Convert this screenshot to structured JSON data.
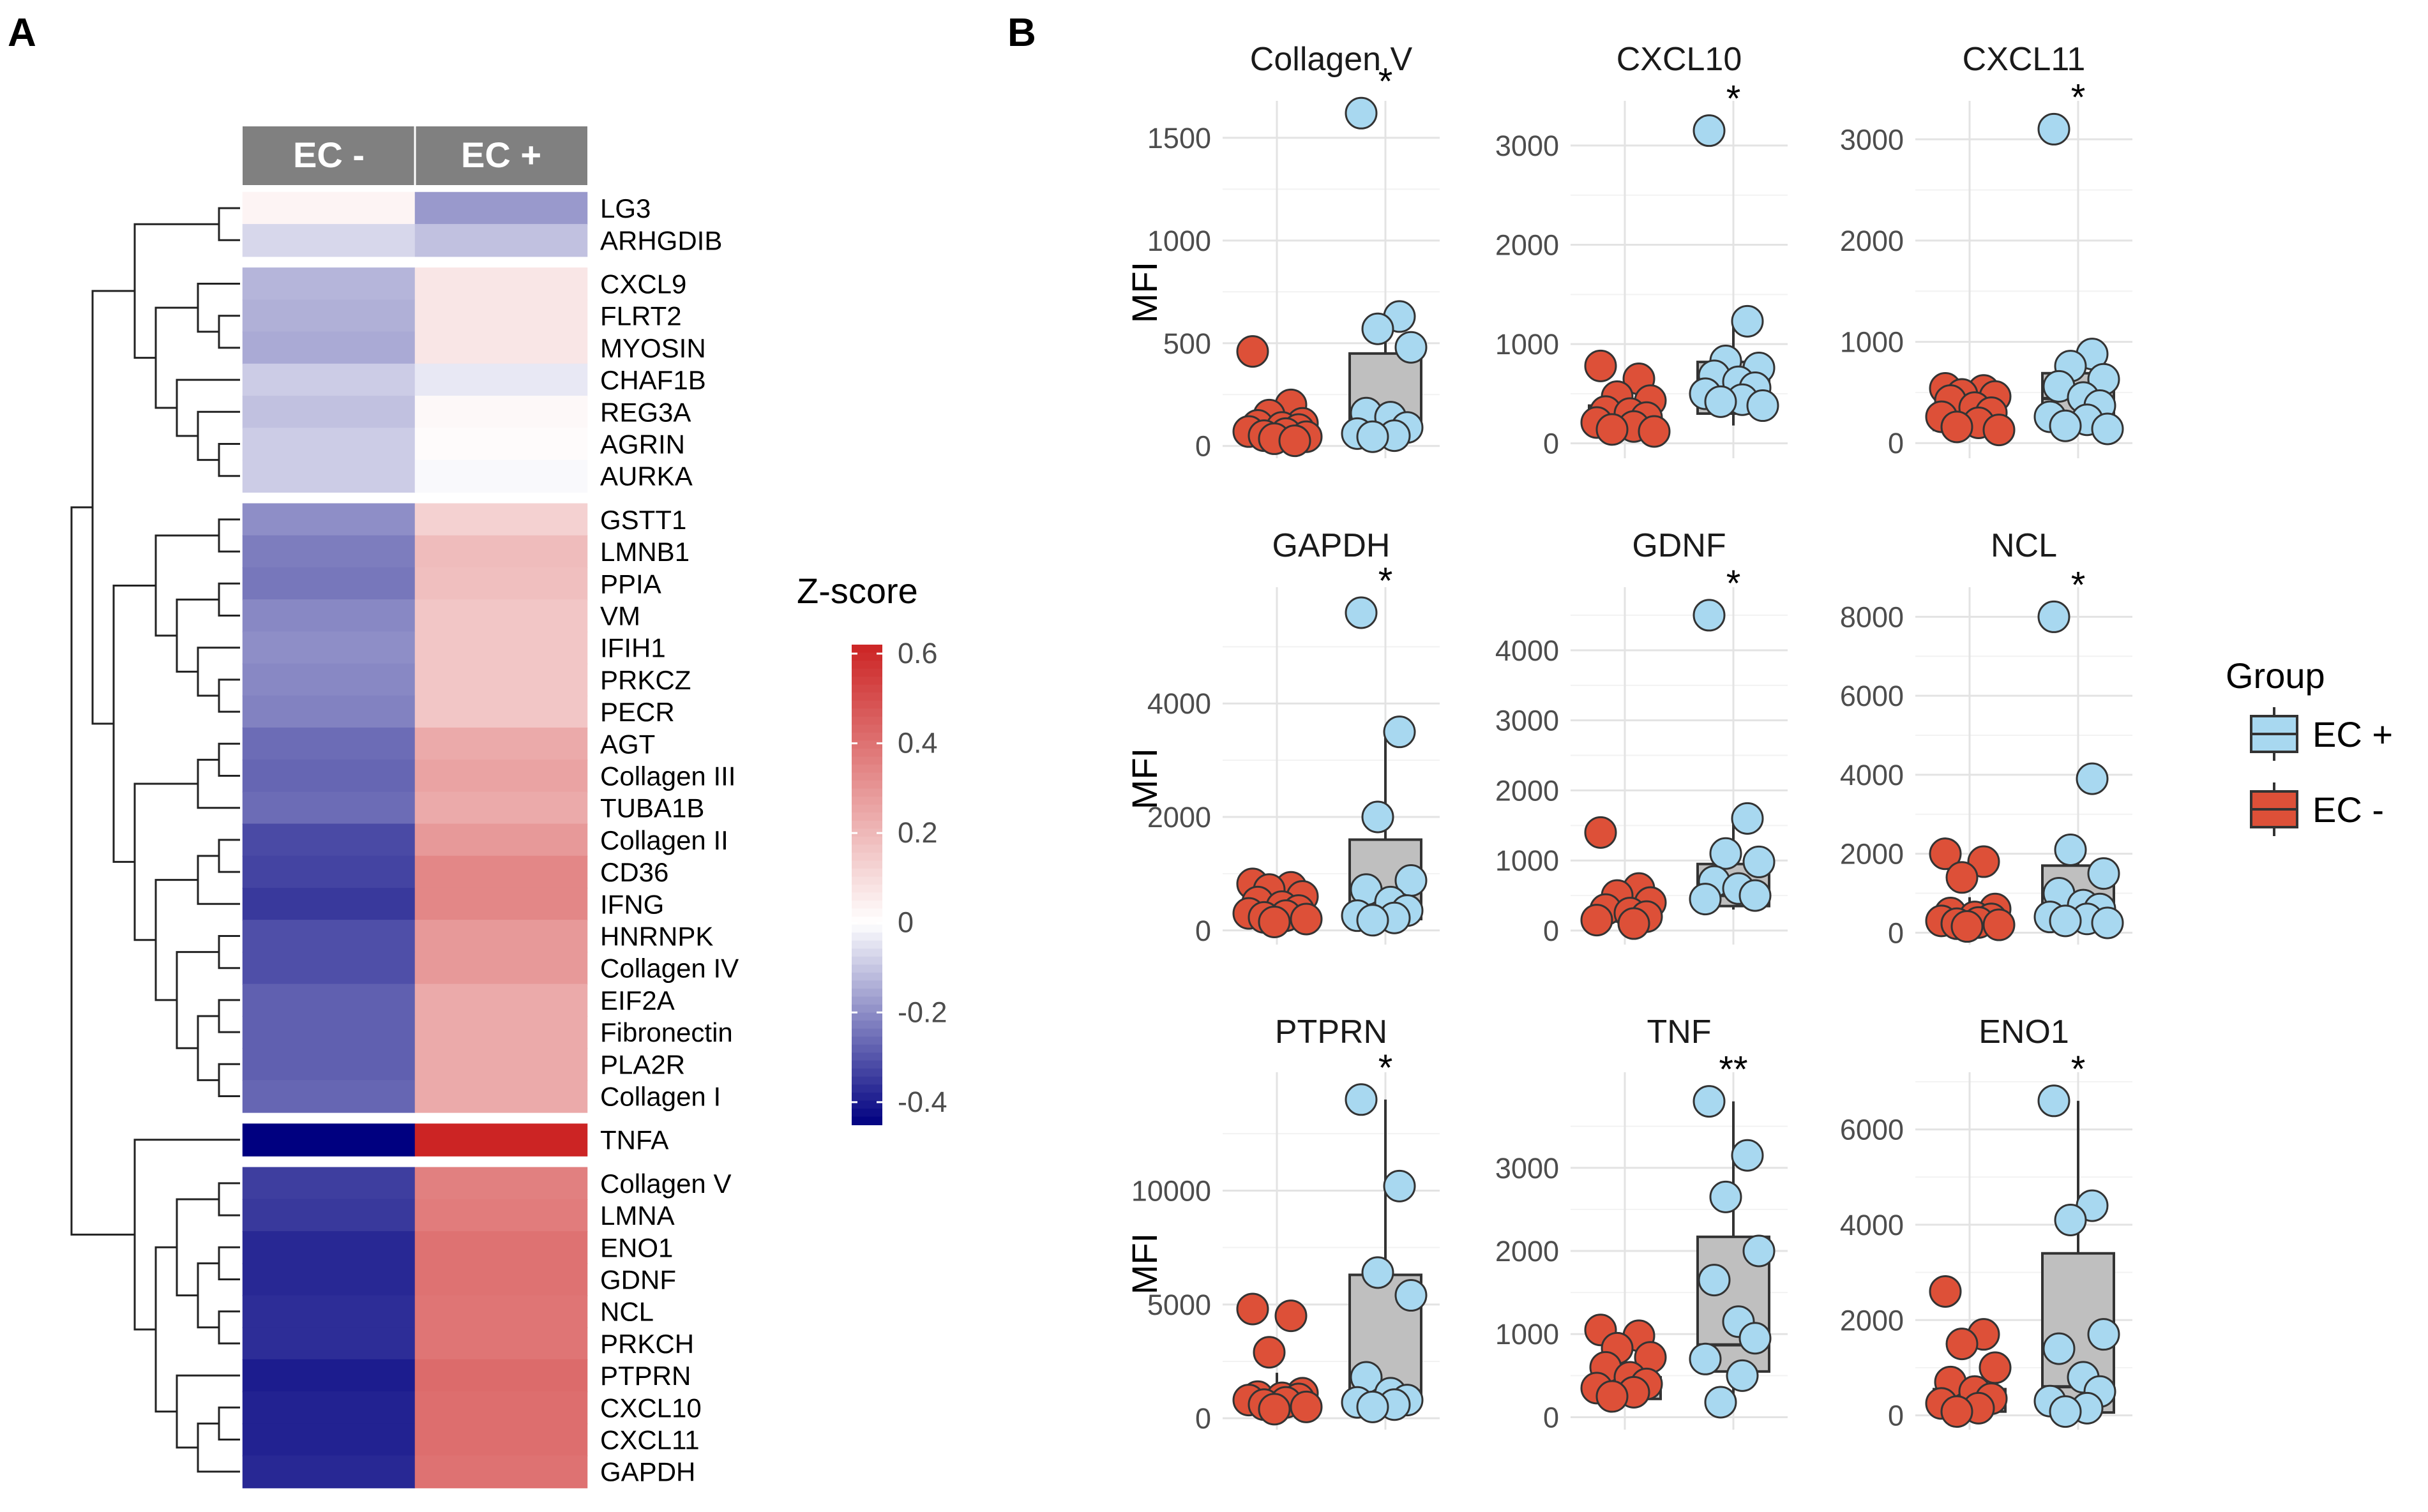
{
  "panels": {
    "a": "A",
    "b": "B"
  },
  "chart_data": [
    {
      "type": "heatmap",
      "columns": [
        "EC -",
        "EC +"
      ],
      "legend_title": "Z-score",
      "scale_ticks": [
        0.6,
        0.4,
        0.2,
        0,
        -0.2,
        -0.4
      ],
      "scale_tick_labels": [
        "0.6",
        "0.4",
        "0.2",
        "0",
        "-0.2",
        "-0.4"
      ],
      "color_range": [
        -0.45,
        0.62
      ],
      "color_low": "#000080",
      "color_mid": "#ffffff",
      "color_high": "#cc2424",
      "groups": [
        {
          "rows": [
            {
              "label": "LG3",
              "values": [
                0.03,
                -0.18
              ]
            },
            {
              "label": "ARHGDIB",
              "values": [
                -0.07,
                -0.11
              ]
            }
          ]
        },
        {
          "rows": [
            {
              "label": "CXCL9",
              "values": [
                -0.13,
                0.07
              ]
            },
            {
              "label": "FLRT2",
              "values": [
                -0.14,
                0.07
              ]
            },
            {
              "label": "MYOSIN",
              "values": [
                -0.15,
                0.07
              ]
            },
            {
              "label": "CHAF1B",
              "values": [
                -0.09,
                -0.04
              ]
            },
            {
              "label": "REG3A",
              "values": [
                -0.11,
                0.02
              ]
            },
            {
              "label": "AGRIN",
              "values": [
                -0.09,
                0.01
              ]
            },
            {
              "label": "AURKA",
              "values": [
                -0.09,
                -0.01
              ]
            }
          ]
        },
        {
          "rows": [
            {
              "label": "GSTT1",
              "values": [
                -0.2,
                0.13
              ]
            },
            {
              "label": "LMNB1",
              "values": [
                -0.23,
                0.19
              ]
            },
            {
              "label": "PPIA",
              "values": [
                -0.24,
                0.18
              ]
            },
            {
              "label": "VM",
              "values": [
                -0.21,
                0.16
              ]
            },
            {
              "label": "IFIH1",
              "values": [
                -0.2,
                0.16
              ]
            },
            {
              "label": "PRKCZ",
              "values": [
                -0.21,
                0.16
              ]
            },
            {
              "label": "PECR",
              "values": [
                -0.22,
                0.16
              ]
            },
            {
              "label": "AGT",
              "values": [
                -0.26,
                0.24
              ]
            },
            {
              "label": "Collagen III",
              "values": [
                -0.27,
                0.26
              ]
            },
            {
              "label": "TUBA1B",
              "values": [
                -0.26,
                0.24
              ]
            },
            {
              "label": "Collagen II",
              "values": [
                -0.32,
                0.29
              ]
            },
            {
              "label": "CD36",
              "values": [
                -0.33,
                0.34
              ]
            },
            {
              "label": "IFNG",
              "values": [
                -0.35,
                0.34
              ]
            },
            {
              "label": "HNRNPK",
              "values": [
                -0.31,
                0.29
              ]
            },
            {
              "label": "Collagen IV",
              "values": [
                -0.31,
                0.29
              ]
            },
            {
              "label": "EIF2A",
              "values": [
                -0.28,
                0.24
              ]
            },
            {
              "label": "Fibronectin",
              "values": [
                -0.28,
                0.24
              ]
            },
            {
              "label": "PLA2R",
              "values": [
                -0.28,
                0.24
              ]
            },
            {
              "label": "Collagen I",
              "values": [
                -0.27,
                0.24
              ]
            }
          ]
        },
        {
          "rows": [
            {
              "label": "TNFA",
              "values": [
                -0.45,
                0.62
              ]
            }
          ]
        },
        {
          "rows": [
            {
              "label": "Collagen V",
              "values": [
                -0.34,
                0.36
              ]
            },
            {
              "label": "LMNA",
              "values": [
                -0.35,
                0.37
              ]
            },
            {
              "label": "ENO1",
              "values": [
                -0.38,
                0.4
              ]
            },
            {
              "label": "GDNF",
              "values": [
                -0.38,
                0.4
              ]
            },
            {
              "label": "NCL",
              "values": [
                -0.37,
                0.39
              ]
            },
            {
              "label": "PRKCH",
              "values": [
                -0.37,
                0.39
              ]
            },
            {
              "label": "PTPRN",
              "values": [
                -0.4,
                0.42
              ]
            },
            {
              "label": "CXCL10",
              "values": [
                -0.39,
                0.41
              ]
            },
            {
              "label": "CXCL11",
              "values": [
                -0.39,
                0.41
              ]
            },
            {
              "label": "GAPDH",
              "values": [
                -0.38,
                0.4
              ]
            }
          ]
        }
      ]
    },
    {
      "type": "boxplot",
      "ylabel": "MFI",
      "legend": {
        "title": "Group",
        "entries": [
          {
            "name": "EC +",
            "color": "#a8d8f0"
          },
          {
            "name": "EC -",
            "color": "#dd5038"
          }
        ]
      },
      "box_fill": "#bfbfbf",
      "facets": [
        {
          "title": "Collagen V",
          "sig": "*",
          "ylim": [
            -60,
            1680
          ],
          "ticks": [
            0,
            500,
            1000,
            1500
          ],
          "tick_labels": [
            "0",
            "500",
            "1000",
            "1500"
          ],
          "groups": [
            {
              "name": "EC -",
              "box": {
                "min": 40,
                "q1": 60,
                "median": 75,
                "q3": 95,
                "max": 110
              },
              "points": [
                460,
                200,
                150,
                110,
                100,
                90,
                80,
                70,
                60,
                50,
                45,
                35,
                25
              ]
            },
            {
              "name": "EC +",
              "box": {
                "min": 80,
                "q1": 80,
                "median": 100,
                "q3": 450,
                "max": 630
              },
              "points": [
                1620,
                630,
                570,
                480,
                160,
                140,
                90,
                60,
                50,
                45
              ]
            }
          ]
        },
        {
          "title": "CXCL10",
          "sig": "*",
          "ylim": [
            -150,
            3450
          ],
          "ticks": [
            0,
            1000,
            2000,
            3000
          ],
          "tick_labels": [
            "0",
            "1000",
            "2000",
            "3000"
          ],
          "groups": [
            {
              "name": "EC -",
              "box": {
                "min": 100,
                "q1": 150,
                "median": 240,
                "q3": 380,
                "max": 420
              },
              "points": [
                780,
                650,
                470,
                430,
                320,
                300,
                260,
                210,
                170,
                140,
                120
              ]
            },
            {
              "name": "EC +",
              "box": {
                "min": 180,
                "q1": 300,
                "median": 420,
                "q3": 820,
                "max": 1200
              },
              "points": [
                3150,
                1230,
                830,
                760,
                680,
                620,
                560,
                500,
                440,
                420,
                380
              ]
            }
          ]
        },
        {
          "title": "CXCL11",
          "sig": "*",
          "ylim": [
            -150,
            3380
          ],
          "ticks": [
            0,
            1000,
            2000,
            3000
          ],
          "tick_labels": [
            "0",
            "1000",
            "2000",
            "3000"
          ],
          "groups": [
            {
              "name": "EC -",
              "box": {
                "min": 100,
                "q1": 130,
                "median": 170,
                "q3": 370,
                "max": 480
              },
              "points": [
                540,
                520,
                480,
                460,
                420,
                350,
                300,
                260,
                200,
                160,
                130
              ]
            },
            {
              "name": "EC +",
              "box": {
                "min": 130,
                "q1": 230,
                "median": 440,
                "q3": 690,
                "max": 900
              },
              "points": [
                3100,
                880,
                760,
                630,
                560,
                450,
                370,
                260,
                230,
                170,
                140
              ]
            }
          ]
        },
        {
          "title": "GAPDH",
          "sig": "*",
          "ylim": [
            -250,
            6050
          ],
          "ticks": [
            0,
            2000,
            4000
          ],
          "tick_labels": [
            "0",
            "2000",
            "4000"
          ],
          "groups": [
            {
              "name": "EC -",
              "box": {
                "min": 130,
                "q1": 150,
                "median": 240,
                "q3": 450,
                "max": 700
              },
              "points": [
                820,
                760,
                720,
                600,
                500,
                420,
                350,
                300,
                260,
                230,
                200,
                150
              ]
            },
            {
              "name": "EC +",
              "box": {
                "min": 180,
                "q1": 200,
                "median": 400,
                "q3": 1600,
                "max": 3500
              },
              "points": [
                5600,
                3500,
                2000,
                880,
                720,
                500,
                350,
                260,
                220,
                180
              ]
            }
          ]
        },
        {
          "title": "GDNF",
          "sig": "*",
          "ylim": [
            -200,
            4900
          ],
          "ticks": [
            0,
            1000,
            2000,
            3000,
            4000
          ],
          "tick_labels": [
            "0",
            "1000",
            "2000",
            "3000",
            "4000"
          ],
          "groups": [
            {
              "name": "EC -",
              "box": {
                "min": 100,
                "q1": 130,
                "median": 200,
                "q3": 320,
                "max": 500
              },
              "points": [
                1400,
                600,
                500,
                400,
                300,
                250,
                200,
                150,
                100
              ]
            },
            {
              "name": "EC +",
              "box": {
                "min": 300,
                "q1": 350,
                "median": 500,
                "q3": 950,
                "max": 1600
              },
              "points": [
                4500,
                1600,
                1100,
                980,
                700,
                600,
                500,
                450
              ]
            }
          ]
        },
        {
          "title": "NCL",
          "sig": "*",
          "ylim": [
            -300,
            8750
          ],
          "ticks": [
            0,
            2000,
            4000,
            6000,
            8000
          ],
          "tick_labels": [
            "0",
            "2000",
            "4000",
            "6000",
            "8000"
          ],
          "groups": [
            {
              "name": "EC -",
              "box": {
                "min": 150,
                "q1": 180,
                "median": 260,
                "q3": 420,
                "max": 900
              },
              "points": [
                2000,
                1800,
                1400,
                600,
                500,
                400,
                350,
                300,
                260,
                230,
                200,
                160
              ]
            },
            {
              "name": "EC +",
              "box": {
                "min": 250,
                "q1": 300,
                "median": 600,
                "q3": 1700,
                "max": 2000
              },
              "points": [
                8000,
                3900,
                2100,
                1500,
                1000,
                700,
                600,
                400,
                350,
                300,
                250
              ]
            }
          ]
        },
        {
          "title": "PTPRN",
          "sig": "*",
          "ylim": [
            -500,
            15200
          ],
          "ticks": [
            0,
            5000,
            10000
          ],
          "tick_labels": [
            "0",
            "5000",
            "10000"
          ],
          "groups": [
            {
              "name": "EC -",
              "box": {
                "min": 300,
                "q1": 400,
                "median": 650,
                "q3": 1100,
                "max": 2000
              },
              "points": [
                4800,
                4500,
                2900,
                1100,
                950,
                900,
                850,
                800,
                700,
                600,
                500,
                400
              ]
            },
            {
              "name": "EC +",
              "box": {
                "min": 500,
                "q1": 600,
                "median": 1200,
                "q3": 6300,
                "max": 14000
              },
              "points": [
                14000,
                10200,
                6400,
                5400,
                1800,
                1100,
                800,
                700,
                600,
                500
              ]
            }
          ]
        },
        {
          "title": "TNF",
          "sig": "**",
          "ylim": [
            -150,
            4150
          ],
          "ticks": [
            0,
            1000,
            2000,
            3000
          ],
          "tick_labels": [
            "0",
            "1000",
            "2000",
            "3000"
          ],
          "groups": [
            {
              "name": "EC -",
              "box": {
                "min": 200,
                "q1": 220,
                "median": 300,
                "q3": 480,
                "max": 1000
              },
              "points": [
                1050,
                980,
                830,
                720,
                600,
                480,
                400,
                350,
                300,
                250
              ]
            },
            {
              "name": "EC +",
              "box": {
                "min": 150,
                "q1": 550,
                "median": 870,
                "q3": 2170,
                "max": 3800
              },
              "points": [
                3800,
                3150,
                2650,
                2000,
                1650,
                1150,
                950,
                700,
                500,
                180
              ]
            }
          ]
        },
        {
          "title": "ENO1",
          "sig": "*",
          "ylim": [
            -300,
            7200
          ],
          "ticks": [
            0,
            2000,
            4000,
            6000
          ],
          "tick_labels": [
            "0",
            "2000",
            "4000",
            "6000"
          ],
          "groups": [
            {
              "name": "EC -",
              "box": {
                "min": 50,
                "q1": 80,
                "median": 250,
                "q3": 550,
                "max": 800
              },
              "points": [
                2600,
                1700,
                1500,
                1000,
                700,
                500,
                350,
                250,
                150,
                80
              ]
            },
            {
              "name": "EC +",
              "box": {
                "min": 50,
                "q1": 60,
                "median": 600,
                "q3": 3400,
                "max": 6600
              },
              "points": [
                6600,
                4400,
                4100,
                1700,
                1400,
                800,
                500,
                300,
                150,
                80
              ]
            }
          ]
        }
      ]
    }
  ]
}
